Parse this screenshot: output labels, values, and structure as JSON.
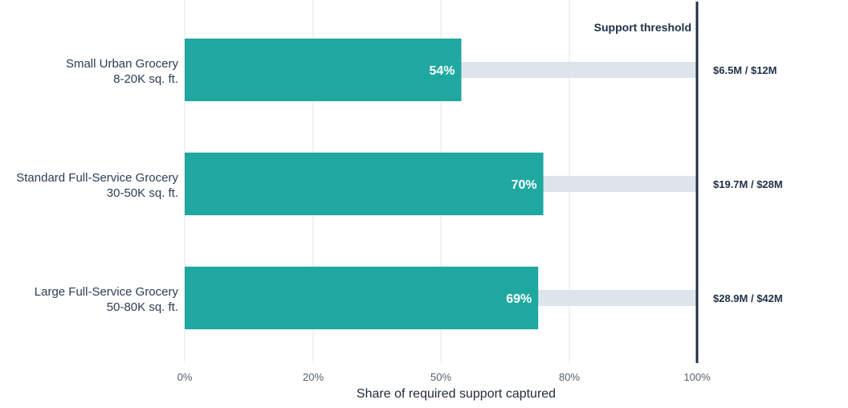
{
  "chart_data": {
    "type": "bar",
    "orientation": "horizontal",
    "categories": [
      {
        "line1": "Small Urban Grocery",
        "line2": "8-20K sq. ft."
      },
      {
        "line1": "Standard Full-Service Grocery",
        "line2": "30-50K sq. ft."
      },
      {
        "line1": "Large Full-Service Grocery",
        "line2": "50-80K sq. ft."
      }
    ],
    "values": [
      54,
      70,
      69
    ],
    "value_labels": [
      "54%",
      "70%",
      "69%"
    ],
    "amount_labels": [
      "$6.5M / $12M",
      "$19.7M / $28M",
      "$28.9M / $42M"
    ],
    "xlabel": "Share of required support captured",
    "xlim": [
      0,
      100
    ],
    "x_ticks": [
      0,
      20,
      50,
      80,
      100
    ],
    "x_tick_labels": [
      "0%",
      "20%",
      "50%",
      "80%",
      "100%"
    ],
    "threshold": {
      "value": 100,
      "label": "Support threshold"
    },
    "grid": true,
    "colors": {
      "bar": "#1fa8a0",
      "track": "#dde5ec",
      "threshold": "#1f3047",
      "grid": "#e6e6e6"
    }
  }
}
